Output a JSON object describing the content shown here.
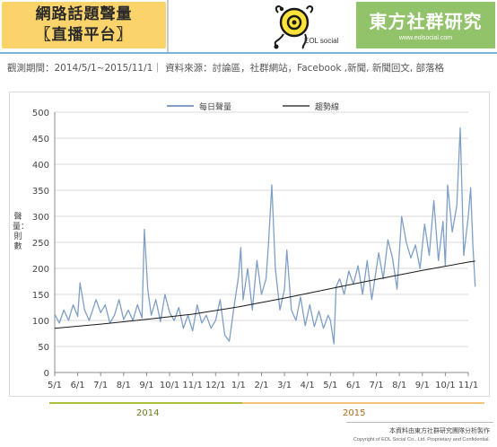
{
  "header": {
    "title_line1": "網路話題聲量",
    "title_line2": "〖直播平台〗",
    "logo_label": "EOL social",
    "brand_name": "東方社群研究",
    "brand_url": "www.eolsocial.com"
  },
  "info_line": "觀測期間：2014/5/1~2015/11/1｜ 資料來源：討論區，社群網站，Facebook ,新聞, 新聞回文, 部落格",
  "colors": {
    "title_bg": "#fbd36b",
    "brand_bg": "#92c36a",
    "series_daily": "#7f9fc6",
    "series_trend": "#1a1a1a"
  },
  "years": {
    "y2014": "2014",
    "y2015": "2015"
  },
  "footer": {
    "note": "本資料由東方社群研究團隊分析製作",
    "copyright": "Copyright of EOL Social Co., Ltd. Proprietary and Confidential."
  },
  "chart_data": {
    "type": "line",
    "ylabel": "聲量：則數",
    "xlabel": "",
    "ylim": [
      0,
      500
    ],
    "yticks": [
      0,
      50,
      100,
      150,
      200,
      250,
      300,
      350,
      400,
      450,
      500
    ],
    "xticks": [
      "5/1",
      "6/1",
      "7/1",
      "8/1",
      "9/1",
      "10/1",
      "11/1",
      "12/1",
      "1/1",
      "2/1",
      "3/1",
      "4/1",
      "5/1",
      "6/1",
      "7/1",
      "8/1",
      "9/1",
      "10/1",
      "11/1"
    ],
    "grid": "horizontal",
    "legend": "top-center",
    "series": [
      {
        "name": "每日聲量",
        "points": [
          [
            0,
            112
          ],
          [
            0.2,
            95
          ],
          [
            0.4,
            120
          ],
          [
            0.6,
            100
          ],
          [
            0.8,
            130
          ],
          [
            1,
            108
          ],
          [
            1.1,
            172
          ],
          [
            1.3,
            120
          ],
          [
            1.5,
            100
          ],
          [
            1.8,
            140
          ],
          [
            2,
            115
          ],
          [
            2.2,
            130
          ],
          [
            2.4,
            95
          ],
          [
            2.6,
            110
          ],
          [
            2.8,
            140
          ],
          [
            3,
            102
          ],
          [
            3.2,
            120
          ],
          [
            3.4,
            100
          ],
          [
            3.6,
            130
          ],
          [
            3.8,
            105
          ],
          [
            3.9,
            275
          ],
          [
            4.05,
            160
          ],
          [
            4.2,
            110
          ],
          [
            4.4,
            140
          ],
          [
            4.6,
            98
          ],
          [
            4.8,
            150
          ],
          [
            5,
            115
          ],
          [
            5.2,
            100
          ],
          [
            5.4,
            125
          ],
          [
            5.6,
            85
          ],
          [
            5.8,
            110
          ],
          [
            6,
            80
          ],
          [
            6.2,
            130
          ],
          [
            6.4,
            95
          ],
          [
            6.6,
            110
          ],
          [
            6.8,
            85
          ],
          [
            7,
            100
          ],
          [
            7.2,
            140
          ],
          [
            7.4,
            72
          ],
          [
            7.6,
            60
          ],
          [
            7.8,
            125
          ],
          [
            8,
            185
          ],
          [
            8.1,
            240
          ],
          [
            8.2,
            140
          ],
          [
            8.4,
            200
          ],
          [
            8.6,
            120
          ],
          [
            8.8,
            215
          ],
          [
            9,
            150
          ],
          [
            9.2,
            180
          ],
          [
            9.3,
            245
          ],
          [
            9.45,
            360
          ],
          [
            9.6,
            200
          ],
          [
            9.8,
            120
          ],
          [
            10,
            160
          ],
          [
            10.1,
            235
          ],
          [
            10.3,
            120
          ],
          [
            10.5,
            100
          ],
          [
            10.7,
            145
          ],
          [
            10.9,
            90
          ],
          [
            11.1,
            130
          ],
          [
            11.3,
            88
          ],
          [
            11.5,
            118
          ],
          [
            11.7,
            85
          ],
          [
            11.9,
            110
          ],
          [
            12,
            100
          ],
          [
            12.15,
            55
          ],
          [
            12.25,
            165
          ],
          [
            12.4,
            180
          ],
          [
            12.6,
            150
          ],
          [
            12.8,
            195
          ],
          [
            13,
            170
          ],
          [
            13.2,
            205
          ],
          [
            13.4,
            150
          ],
          [
            13.6,
            215
          ],
          [
            13.8,
            140
          ],
          [
            14,
            200
          ],
          [
            14.1,
            230
          ],
          [
            14.3,
            180
          ],
          [
            14.5,
            255
          ],
          [
            14.7,
            220
          ],
          [
            14.9,
            160
          ],
          [
            15.1,
            300
          ],
          [
            15.3,
            250
          ],
          [
            15.5,
            220
          ],
          [
            15.7,
            245
          ],
          [
            15.9,
            200
          ],
          [
            16.1,
            285
          ],
          [
            16.3,
            225
          ],
          [
            16.5,
            330
          ],
          [
            16.7,
            215
          ],
          [
            16.9,
            290
          ],
          [
            17,
            205
          ],
          [
            17.1,
            360
          ],
          [
            17.3,
            270
          ],
          [
            17.5,
            320
          ],
          [
            17.65,
            470
          ],
          [
            17.8,
            225
          ],
          [
            18,
            300
          ],
          [
            18.1,
            355
          ],
          [
            18.2,
            245
          ],
          [
            18.3,
            165
          ]
        ]
      },
      {
        "name": "趨勢線",
        "points": [
          [
            0,
            85
          ],
          [
            2,
            93
          ],
          [
            4,
            102
          ],
          [
            6,
            112
          ],
          [
            8,
            126
          ],
          [
            10,
            143
          ],
          [
            12,
            161
          ],
          [
            14,
            179
          ],
          [
            16,
            196
          ],
          [
            18,
            212
          ],
          [
            18.3,
            214
          ]
        ]
      }
    ]
  }
}
